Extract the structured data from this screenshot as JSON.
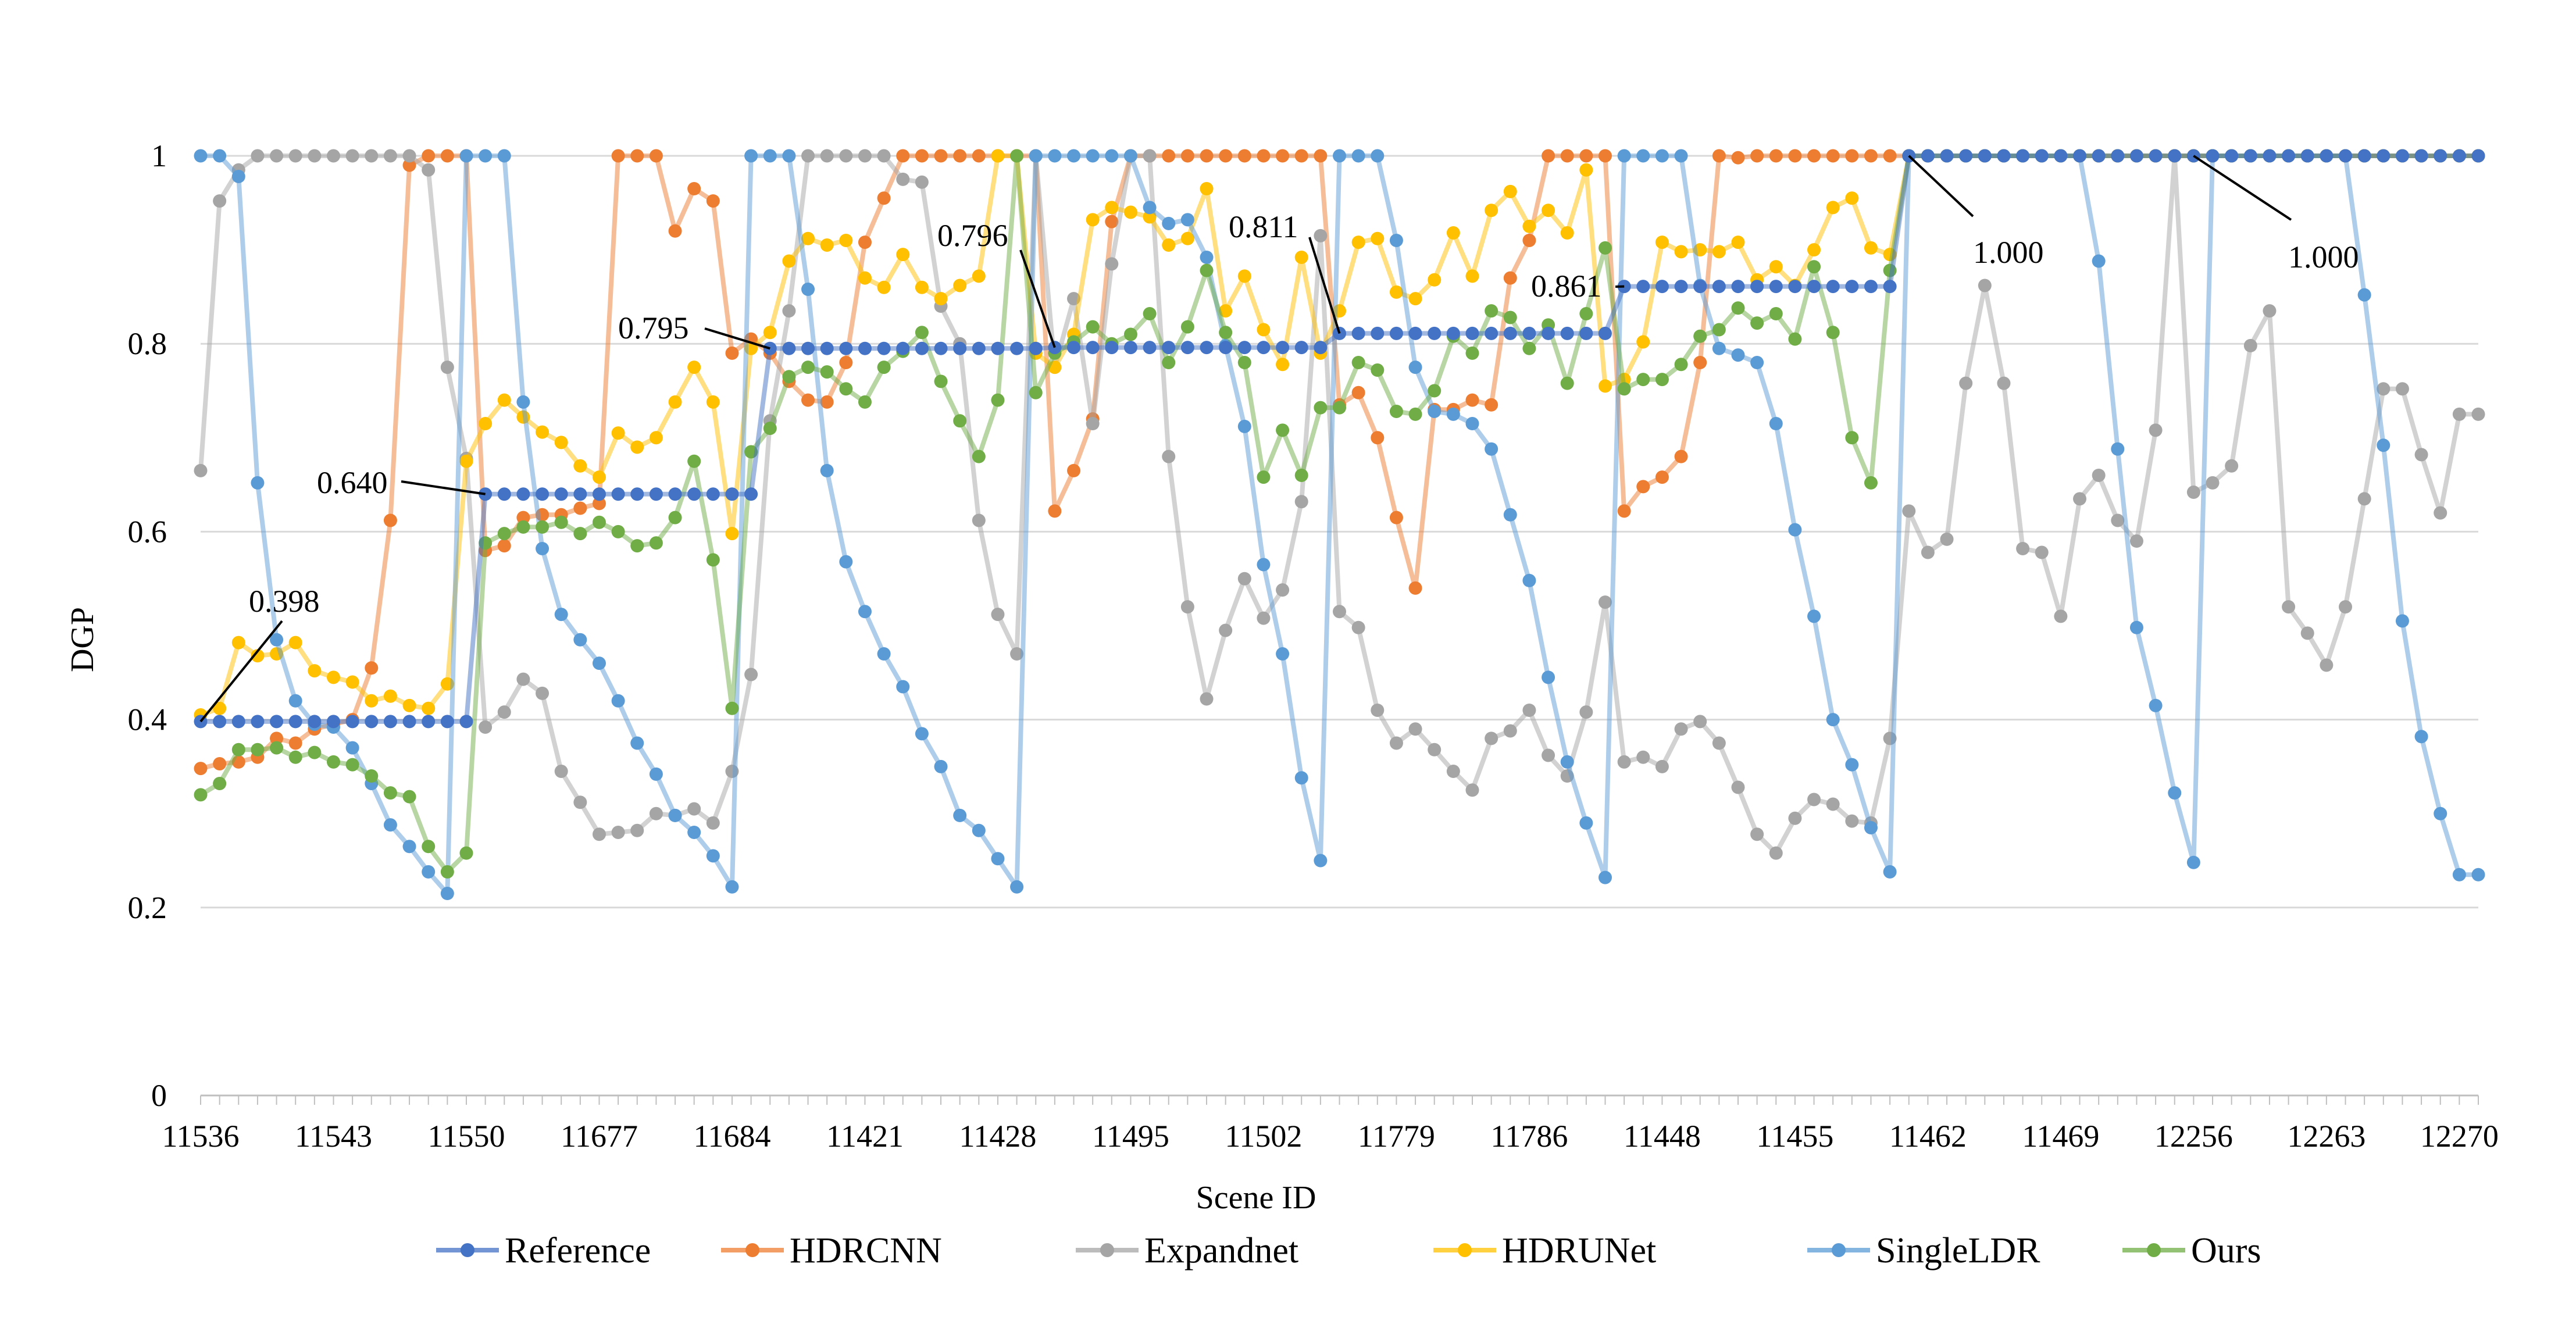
{
  "chart_data": {
    "type": "line",
    "title": "",
    "xlabel": "Scene ID",
    "ylabel": "DGP",
    "ylim": [
      0,
      1
    ],
    "yticks": [
      "0",
      "0.2",
      "0.4",
      "0.6",
      "0.8",
      "1"
    ],
    "grid": "horizontal",
    "legend_placement": "bottom",
    "num_points": 121,
    "x_tick_labels": [
      "11536",
      "11543",
      "11550",
      "11677",
      "11684",
      "11421",
      "11428",
      "11495",
      "11502",
      "11779",
      "11786",
      "11448",
      "11455",
      "11462",
      "11469",
      "12256",
      "12263",
      "12270"
    ],
    "series": [
      {
        "name": "Reference",
        "color": "#4472C4",
        "values": [
          0.398,
          0.398,
          0.398,
          0.398,
          0.398,
          0.398,
          0.398,
          0.398,
          0.398,
          0.398,
          0.398,
          0.398,
          0.398,
          0.398,
          0.398,
          0.64,
          0.64,
          0.64,
          0.64,
          0.64,
          0.64,
          0.64,
          0.64,
          0.64,
          0.64,
          0.64,
          0.64,
          0.64,
          0.64,
          0.64,
          0.795,
          0.795,
          0.795,
          0.795,
          0.795,
          0.795,
          0.795,
          0.795,
          0.795,
          0.795,
          0.795,
          0.795,
          0.795,
          0.795,
          0.795,
          0.796,
          0.796,
          0.796,
          0.796,
          0.796,
          0.796,
          0.796,
          0.796,
          0.796,
          0.796,
          0.796,
          0.796,
          0.796,
          0.796,
          0.796,
          0.811,
          0.811,
          0.811,
          0.811,
          0.811,
          0.811,
          0.811,
          0.811,
          0.811,
          0.811,
          0.811,
          0.811,
          0.811,
          0.811,
          0.811,
          0.861,
          0.861,
          0.861,
          0.861,
          0.861,
          0.861,
          0.861,
          0.861,
          0.861,
          0.861,
          0.861,
          0.861,
          0.861,
          0.861,
          0.861,
          1.0,
          1.0,
          1.0,
          1.0,
          1.0,
          1.0,
          1.0,
          1.0,
          1.0,
          1.0,
          1.0,
          1.0,
          1.0,
          1.0,
          1.0,
          1.0,
          1.0,
          1.0,
          1.0,
          1.0,
          1.0,
          1.0,
          1.0,
          1.0,
          1.0,
          1.0,
          1.0,
          1.0,
          1.0,
          1.0,
          1.0
        ]
      },
      {
        "name": "HDRCNN",
        "color": "#ED7D31",
        "values": [
          0.348,
          0.353,
          0.355,
          0.36,
          0.38,
          0.375,
          0.39,
          0.395,
          0.4,
          0.455,
          0.612,
          0.99,
          1.0,
          1.0,
          1.0,
          0.58,
          0.585,
          0.615,
          0.618,
          0.618,
          0.625,
          0.63,
          1.0,
          1.0,
          1.0,
          0.92,
          0.965,
          0.952,
          0.79,
          0.805,
          0.79,
          0.76,
          0.74,
          0.738,
          0.78,
          0.908,
          0.955,
          1.0,
          1.0,
          1.0,
          1.0,
          1.0,
          1.0,
          1.0,
          1.0,
          0.622,
          0.665,
          0.72,
          0.93,
          1.0,
          1.0,
          1.0,
          1.0,
          1.0,
          1.0,
          1.0,
          1.0,
          1.0,
          1.0,
          1.0,
          0.735,
          0.748,
          0.7,
          0.615,
          0.54,
          0.73,
          0.73,
          0.74,
          0.735,
          0.87,
          0.91,
          1.0,
          1.0,
          1.0,
          1.0,
          0.622,
          0.648,
          0.658,
          0.68,
          0.78,
          1.0,
          0.998,
          1.0,
          1.0,
          1.0,
          1.0,
          1.0,
          1.0,
          1.0,
          1.0,
          1.0,
          1.0,
          1.0,
          1.0,
          1.0,
          1.0,
          1.0,
          1.0,
          1.0,
          1.0,
          1.0,
          1.0,
          1.0,
          1.0,
          1.0,
          1.0,
          1.0,
          1.0,
          1.0,
          1.0,
          1.0,
          1.0,
          1.0,
          1.0,
          1.0,
          1.0,
          1.0,
          1.0,
          1.0,
          1.0,
          1.0
        ]
      },
      {
        "name": "Expandnet",
        "color": "#A5A5A5",
        "values": [
          0.665,
          0.952,
          0.985,
          1.0,
          1.0,
          1.0,
          1.0,
          1.0,
          1.0,
          1.0,
          1.0,
          1.0,
          0.985,
          0.775,
          0.678,
          0.392,
          0.408,
          0.443,
          0.428,
          0.345,
          0.312,
          0.278,
          0.28,
          0.282,
          0.3,
          0.298,
          0.305,
          0.29,
          0.345,
          0.448,
          0.718,
          0.835,
          1.0,
          1.0,
          1.0,
          1.0,
          1.0,
          0.975,
          0.972,
          0.84,
          0.8,
          0.612,
          0.512,
          0.47,
          1.0,
          0.775,
          0.848,
          0.715,
          0.885,
          1.0,
          1.0,
          0.68,
          0.52,
          0.422,
          0.495,
          0.55,
          0.508,
          0.538,
          0.632,
          0.915,
          0.515,
          0.498,
          0.41,
          0.375,
          0.39,
          0.368,
          0.345,
          0.325,
          0.38,
          0.388,
          0.41,
          0.362,
          0.34,
          0.408,
          0.525,
          0.355,
          0.36,
          0.35,
          0.39,
          0.398,
          0.375,
          0.328,
          0.278,
          0.258,
          0.295,
          0.315,
          0.31,
          0.292,
          0.29,
          0.38,
          0.622,
          0.578,
          0.592,
          0.758,
          0.862,
          0.758,
          0.582,
          0.578,
          0.51,
          0.635,
          0.66,
          0.612,
          0.59,
          0.708,
          1.0,
          0.642,
          0.652,
          0.67,
          0.798,
          0.835,
          0.52,
          0.492,
          0.458,
          0.52,
          0.635,
          0.752,
          0.752,
          0.682,
          0.62,
          0.725,
          0.725
        ]
      },
      {
        "name": "HDRUNet",
        "color": "#FFC000",
        "values": [
          0.405,
          0.412,
          0.482,
          0.468,
          0.47,
          0.482,
          0.452,
          0.445,
          0.44,
          0.42,
          0.425,
          0.415,
          0.412,
          0.438,
          0.675,
          0.715,
          0.74,
          0.722,
          0.706,
          0.695,
          0.67,
          0.658,
          0.705,
          0.69,
          0.7,
          0.738,
          0.775,
          0.738,
          0.598,
          0.795,
          0.812,
          0.888,
          0.912,
          0.905,
          0.91,
          0.87,
          0.86,
          0.895,
          0.86,
          0.848,
          0.862,
          0.872,
          1.0,
          1.0,
          0.79,
          0.775,
          0.81,
          0.932,
          0.945,
          0.94,
          0.935,
          0.905,
          0.912,
          0.965,
          0.835,
          0.872,
          0.815,
          0.778,
          0.892,
          0.79,
          0.835,
          0.908,
          0.912,
          0.855,
          0.848,
          0.868,
          0.918,
          0.872,
          0.942,
          0.962,
          0.925,
          0.942,
          0.918,
          0.985,
          0.755,
          0.762,
          0.802,
          0.908,
          0.898,
          0.9,
          0.898,
          0.908,
          0.868,
          0.882,
          0.862,
          0.9,
          0.945,
          0.955,
          0.902,
          0.895,
          1.0,
          1.0,
          1.0,
          1.0,
          1.0,
          1.0,
          1.0,
          1.0,
          1.0,
          1.0,
          1.0,
          1.0,
          1.0,
          1.0,
          1.0,
          1.0,
          1.0,
          1.0,
          1.0,
          1.0,
          1.0,
          1.0,
          1.0,
          1.0,
          1.0,
          1.0,
          1.0,
          1.0,
          1.0,
          1.0,
          1.0
        ]
      },
      {
        "name": "SingleLDR",
        "color": "#5B9BD5",
        "values": [
          1.0,
          1.0,
          0.978,
          0.652,
          0.485,
          0.42,
          0.395,
          0.392,
          0.37,
          0.332,
          0.288,
          0.265,
          0.238,
          0.215,
          1.0,
          1.0,
          1.0,
          0.738,
          0.582,
          0.512,
          0.485,
          0.46,
          0.42,
          0.375,
          0.342,
          0.298,
          0.28,
          0.255,
          0.222,
          1.0,
          1.0,
          1.0,
          0.858,
          0.665,
          0.568,
          0.515,
          0.47,
          0.435,
          0.385,
          0.35,
          0.298,
          0.282,
          0.252,
          0.222,
          1.0,
          1.0,
          1.0,
          1.0,
          1.0,
          1.0,
          0.945,
          0.928,
          0.932,
          0.892,
          0.798,
          0.712,
          0.565,
          0.47,
          0.338,
          0.25,
          1.0,
          1.0,
          1.0,
          0.91,
          0.775,
          0.728,
          0.725,
          0.715,
          0.688,
          0.618,
          0.548,
          0.445,
          0.355,
          0.29,
          0.232,
          1.0,
          1.0,
          1.0,
          1.0,
          0.862,
          0.795,
          0.788,
          0.78,
          0.715,
          0.602,
          0.51,
          0.4,
          0.352,
          0.285,
          0.238,
          1.0,
          1.0,
          1.0,
          1.0,
          1.0,
          1.0,
          1.0,
          1.0,
          1.0,
          1.0,
          0.888,
          0.688,
          0.498,
          0.415,
          0.322,
          0.248,
          1.0,
          1.0,
          1.0,
          1.0,
          1.0,
          1.0,
          1.0,
          1.0,
          0.852,
          0.692,
          0.505,
          0.382,
          0.3,
          0.235,
          0.235
        ]
      },
      {
        "name": "Ours",
        "color": "#70AD47",
        "values": [
          0.32,
          0.332,
          0.368,
          0.368,
          0.37,
          0.36,
          0.365,
          0.355,
          0.352,
          0.34,
          0.322,
          0.318,
          0.265,
          0.238,
          0.258,
          0.588,
          0.598,
          0.605,
          0.605,
          0.61,
          0.598,
          0.61,
          0.6,
          0.585,
          0.588,
          0.615,
          0.675,
          0.57,
          0.412,
          0.685,
          0.71,
          0.765,
          0.775,
          0.77,
          0.752,
          0.738,
          0.775,
          0.792,
          0.812,
          0.76,
          0.718,
          0.68,
          0.74,
          1.0,
          0.748,
          0.79,
          0.802,
          0.818,
          0.8,
          0.81,
          0.832,
          0.78,
          0.818,
          0.878,
          0.812,
          0.78,
          0.658,
          0.708,
          0.66,
          0.732,
          0.732,
          0.78,
          0.772,
          0.728,
          0.725,
          0.75,
          0.808,
          0.79,
          0.835,
          0.828,
          0.795,
          0.82,
          0.758,
          0.832,
          0.902,
          0.752,
          0.762,
          0.762,
          0.778,
          0.808,
          0.815,
          0.838,
          0.822,
          0.832,
          0.805,
          0.882,
          0.812,
          0.7,
          0.652,
          0.878,
          1.0,
          1.0,
          1.0,
          1.0,
          1.0,
          1.0,
          1.0,
          1.0,
          1.0,
          1.0,
          1.0,
          1.0,
          1.0,
          1.0,
          1.0,
          1.0,
          1.0,
          1.0,
          1.0,
          1.0,
          1.0,
          1.0,
          1.0,
          1.0,
          1.0,
          1.0,
          1.0,
          1.0,
          1.0,
          1.0,
          1.0
        ]
      }
    ],
    "annotations": [
      {
        "text": "0.398",
        "series": "Reference",
        "point_index": 0
      },
      {
        "text": "0.640",
        "series": "Reference",
        "point_index": 15
      },
      {
        "text": "0.795",
        "series": "Reference",
        "point_index": 30
      },
      {
        "text": "0.796",
        "series": "Reference",
        "point_index": 45
      },
      {
        "text": "0.811",
        "series": "Reference",
        "point_index": 60
      },
      {
        "text": "0.861",
        "series": "Reference",
        "point_index": 75
      },
      {
        "text": "1.000",
        "series": "Reference",
        "point_index": 90
      },
      {
        "text": "1.000",
        "series": "Reference",
        "point_index": 105
      }
    ]
  }
}
